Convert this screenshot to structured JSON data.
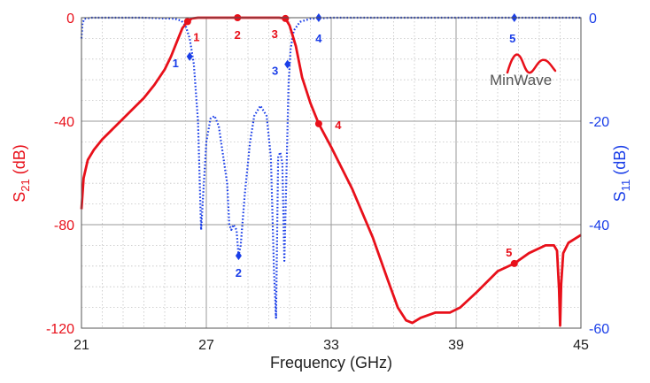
{
  "chart_data": {
    "type": "line",
    "xlabel": "Frequency (GHz)",
    "ylabel_left": {
      "main": "S",
      "sub": "21",
      "unit": " (dB)"
    },
    "ylabel_right": {
      "main": "S",
      "sub": "11",
      "unit": " (dB)"
    },
    "xlim": [
      21,
      45
    ],
    "ylim_left": [
      -120,
      0
    ],
    "ylim_right": [
      -60,
      0
    ],
    "x_ticks": [
      21,
      27,
      33,
      39,
      45
    ],
    "y_ticks_left": [
      0,
      -40,
      -80,
      -120
    ],
    "y_ticks_right": [
      0,
      -20,
      -40,
      -60
    ],
    "grid": true,
    "logo": {
      "text": "MinWave",
      "accent_color": "#e8101a",
      "text_color": "#555555"
    },
    "colors": {
      "s21": "#e8101a",
      "s11": "#1a3ee8",
      "left_axis": "#e8101a",
      "right_axis": "#1a3ee8",
      "grid_major": "#9a9a9a",
      "grid_minor": "#c4c4c4"
    },
    "series": [
      {
        "axis": "left",
        "style": "solid",
        "points": [
          [
            21.0,
            -74
          ],
          [
            21.1,
            -62
          ],
          [
            21.3,
            -55
          ],
          [
            21.6,
            -51
          ],
          [
            22.0,
            -47
          ],
          [
            22.5,
            -43
          ],
          [
            23.0,
            -39
          ],
          [
            23.5,
            -35
          ],
          [
            24.0,
            -31
          ],
          [
            24.5,
            -26
          ],
          [
            25.0,
            -20
          ],
          [
            25.3,
            -15
          ],
          [
            25.6,
            -9
          ],
          [
            25.85,
            -4
          ],
          [
            26.1,
            -1.5
          ],
          [
            26.3,
            -0.3
          ],
          [
            26.6,
            0
          ],
          [
            28.0,
            0
          ],
          [
            29.5,
            0
          ],
          [
            30.5,
            0
          ],
          [
            30.8,
            -0.3
          ],
          [
            31.0,
            -3
          ],
          [
            31.3,
            -11
          ],
          [
            31.6,
            -23
          ],
          [
            32.0,
            -33
          ],
          [
            32.4,
            -41
          ],
          [
            33.0,
            -50
          ],
          [
            34.0,
            -66
          ],
          [
            35.0,
            -85
          ],
          [
            35.7,
            -101
          ],
          [
            36.2,
            -112
          ],
          [
            36.6,
            -117
          ],
          [
            36.9,
            -118
          ],
          [
            37.3,
            -116
          ],
          [
            38.0,
            -114
          ],
          [
            38.7,
            -114
          ],
          [
            39.2,
            -112
          ],
          [
            40.0,
            -106
          ],
          [
            41.0,
            -98
          ],
          [
            41.8,
            -95
          ],
          [
            42.5,
            -91
          ],
          [
            43.3,
            -88
          ],
          [
            43.7,
            -88
          ],
          [
            43.85,
            -90
          ],
          [
            43.95,
            -105
          ],
          [
            44.0,
            -119
          ],
          [
            44.05,
            -103
          ],
          [
            44.15,
            -91
          ],
          [
            44.4,
            -87
          ],
          [
            45.0,
            -84
          ]
        ]
      },
      {
        "axis": "right",
        "style": "dotted",
        "points": [
          [
            21.0,
            -4
          ],
          [
            21.05,
            -1
          ],
          [
            21.15,
            -0.2
          ],
          [
            21.5,
            0
          ],
          [
            24.0,
            0
          ],
          [
            25.5,
            -0.2
          ],
          [
            25.8,
            -0.6
          ],
          [
            26.0,
            -1.5
          ],
          [
            26.2,
            -4
          ],
          [
            26.4,
            -9
          ],
          [
            26.6,
            -20
          ],
          [
            26.75,
            -41
          ],
          [
            26.85,
            -34
          ],
          [
            27.0,
            -24
          ],
          [
            27.2,
            -19.5
          ],
          [
            27.4,
            -19
          ],
          [
            27.6,
            -21
          ],
          [
            28.0,
            -32
          ],
          [
            28.1,
            -40
          ],
          [
            28.2,
            -41
          ],
          [
            28.3,
            -40
          ],
          [
            28.45,
            -41
          ],
          [
            28.55,
            -46
          ],
          [
            28.65,
            -44
          ],
          [
            28.85,
            -34
          ],
          [
            29.1,
            -24
          ],
          [
            29.3,
            -19
          ],
          [
            29.6,
            -17
          ],
          [
            29.9,
            -19
          ],
          [
            30.1,
            -27
          ],
          [
            30.25,
            -49
          ],
          [
            30.35,
            -58
          ],
          [
            30.45,
            -27
          ],
          [
            30.55,
            -26
          ],
          [
            30.65,
            -28
          ],
          [
            30.75,
            -47
          ],
          [
            30.85,
            -30
          ],
          [
            30.95,
            -13
          ],
          [
            31.05,
            -6
          ],
          [
            31.2,
            -2.5
          ],
          [
            31.5,
            -0.8
          ],
          [
            32.0,
            -0.2
          ],
          [
            33.0,
            0
          ],
          [
            45.0,
            0
          ]
        ]
      }
    ],
    "markers": [
      {
        "label": "1",
        "axis": "left",
        "x": 26.1,
        "y": -1.5
      },
      {
        "label": "2",
        "axis": "left",
        "x": 28.5,
        "y": 0
      },
      {
        "label": "3",
        "axis": "left",
        "x": 30.8,
        "y": -0.3
      },
      {
        "label": "4",
        "axis": "left",
        "x": 32.4,
        "y": -41
      },
      {
        "label": "5",
        "axis": "left",
        "x": 41.8,
        "y": -95
      },
      {
        "label": "1",
        "axis": "right",
        "x": 26.2,
        "y": -7.5
      },
      {
        "label": "2",
        "axis": "right",
        "x": 28.55,
        "y": -46
      },
      {
        "label": "3",
        "axis": "right",
        "x": 30.9,
        "y": -9
      },
      {
        "label": "4",
        "axis": "right",
        "x": 32.4,
        "y": 0
      },
      {
        "label": "5",
        "axis": "right",
        "x": 41.8,
        "y": 0
      }
    ]
  }
}
